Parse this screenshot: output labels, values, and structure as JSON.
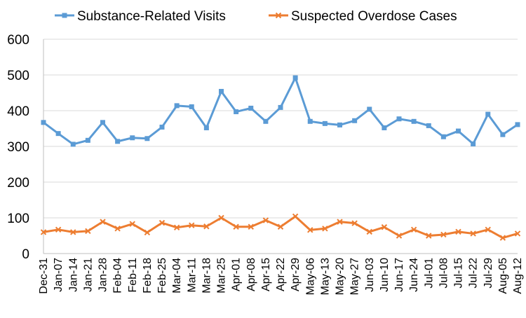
{
  "chart_data": {
    "type": "line",
    "categories": [
      "Dec-31",
      "Jan-07",
      "Jan-14",
      "Jan-21",
      "Jan-28",
      "Feb-04",
      "Feb-11",
      "Feb-18",
      "Feb-25",
      "Mar-04",
      "Mar-11",
      "Mar-18",
      "Mar-25",
      "Apr-01",
      "Apr-08",
      "Apr-15",
      "Apr-22",
      "Apr-29",
      "May-06",
      "May-13",
      "May-20",
      "May-27",
      "Jun-03",
      "Jun-10",
      "Jun-17",
      "Jun-24",
      "Jul-01",
      "Jul-08",
      "Jul-15",
      "Jul-22",
      "Jul-29",
      "Aug-05",
      "Aug-12"
    ],
    "series": [
      {
        "name": "Substance-Related Visits",
        "color": "#5b9bd5",
        "marker": "square",
        "values": [
          367,
          336,
          306,
          317,
          367,
          314,
          324,
          322,
          354,
          414,
          411,
          352,
          454,
          397,
          407,
          370,
          409,
          492,
          370,
          364,
          360,
          372,
          404,
          352,
          377,
          370,
          358,
          327,
          343,
          307,
          390,
          333,
          361
        ]
      },
      {
        "name": "Suspected Overdose Cases",
        "color": "#ed7d31",
        "marker": "x",
        "values": [
          60,
          67,
          60,
          63,
          89,
          70,
          83,
          59,
          86,
          73,
          79,
          76,
          100,
          75,
          75,
          93,
          75,
          104,
          66,
          70,
          89,
          85,
          61,
          74,
          50,
          67,
          50,
          53,
          61,
          56,
          67,
          44,
          56
        ]
      }
    ],
    "ylim": [
      0,
      600
    ],
    "yticks": [
      0,
      100,
      200,
      300,
      400,
      500,
      600
    ],
    "grid": true,
    "legend_position": "top",
    "title": "",
    "xlabel": "",
    "ylabel": ""
  }
}
